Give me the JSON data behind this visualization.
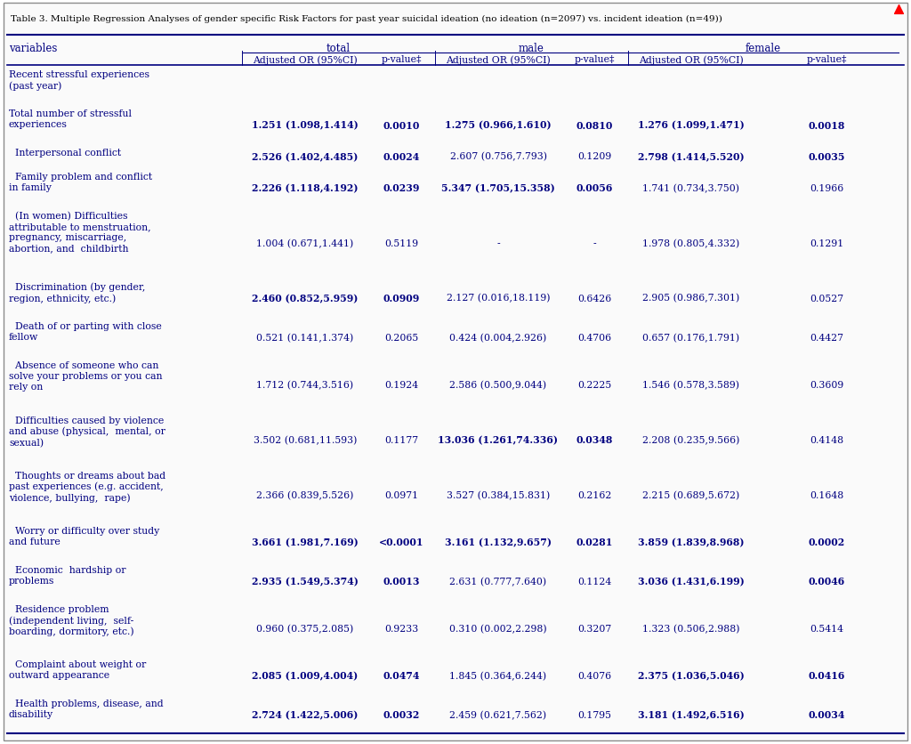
{
  "title": "Table 3. Multiple Regression Analyses of gender specific Risk Factors for past year suicidal ideation (no ideation (n=2097) vs. incident ideation (n=49))",
  "rows": [
    {
      "variable": "Recent stressful experiences\n(past year)",
      "total_or": "",
      "total_p": "",
      "male_or": "",
      "male_p": "",
      "female_or": "",
      "female_p": "",
      "bold_total": false,
      "bold_total_p": false,
      "bold_male": false,
      "bold_male_p": false,
      "bold_female": false,
      "bold_female_p": false,
      "n_lines": 2
    },
    {
      "variable": "Total number of stressful\nexperiences",
      "total_or": "1.251 (1.098,1.414)",
      "total_p": "0.0010",
      "male_or": "1.275 (0.966,1.610)",
      "male_p": "0.0810",
      "female_or": "1.276 (1.099,1.471)",
      "female_p": "0.0018",
      "bold_total": true,
      "bold_total_p": true,
      "bold_male": true,
      "bold_male_p": true,
      "bold_female": true,
      "bold_female_p": true,
      "n_lines": 2
    },
    {
      "variable": "  Interpersonal conflict",
      "total_or": "2.526 (1.402,4.485)",
      "total_p": "0.0024",
      "male_or": "2.607 (0.756,7.793)",
      "male_p": "0.1209",
      "female_or": "2.798 (1.414,5.520)",
      "female_p": "0.0035",
      "bold_total": true,
      "bold_total_p": true,
      "bold_male": false,
      "bold_male_p": false,
      "bold_female": true,
      "bold_female_p": true,
      "n_lines": 1
    },
    {
      "variable": "  Family problem and conflict\nin family",
      "total_or": "2.226 (1.118,4.192)",
      "total_p": "0.0239",
      "male_or": "5.347 (1.705,15.358)",
      "male_p": "0.0056",
      "female_or": "1.741 (0.734,3.750)",
      "female_p": "0.1966",
      "bold_total": true,
      "bold_total_p": true,
      "bold_male": true,
      "bold_male_p": true,
      "bold_female": false,
      "bold_female_p": false,
      "n_lines": 2
    },
    {
      "variable": "  (In women) Difficulties\nattributable to menstruation,\npregnancy, miscarriage,\nabortion, and  childbirth",
      "total_or": "1.004 (0.671,1.441)",
      "total_p": "0.5119",
      "male_or": "-",
      "male_p": "-",
      "female_or": "1.978 (0.805,4.332)",
      "female_p": "0.1291",
      "bold_total": false,
      "bold_total_p": false,
      "bold_male": false,
      "bold_male_p": false,
      "bold_female": false,
      "bold_female_p": false,
      "n_lines": 4
    },
    {
      "variable": "  Discrimination (by gender,\nregion, ethnicity, etc.)",
      "total_or": "2.460 (0.852,5.959)",
      "total_p": "0.0909",
      "male_or": "2.127 (0.016,18.119)",
      "male_p": "0.6426",
      "female_or": "2.905 (0.986,7.301)",
      "female_p": "0.0527",
      "bold_total": true,
      "bold_total_p": true,
      "bold_male": false,
      "bold_male_p": false,
      "bold_female": false,
      "bold_female_p": false,
      "n_lines": 2
    },
    {
      "variable": "  Death of or parting with close\nfellow",
      "total_or": "0.521 (0.141,1.374)",
      "total_p": "0.2065",
      "male_or": "0.424 (0.004,2.926)",
      "male_p": "0.4706",
      "female_or": "0.657 (0.176,1.791)",
      "female_p": "0.4427",
      "bold_total": false,
      "bold_total_p": false,
      "bold_male": false,
      "bold_male_p": false,
      "bold_female": false,
      "bold_female_p": false,
      "n_lines": 2
    },
    {
      "variable": "  Absence of someone who can\nsolve your problems or you can\nrely on",
      "total_or": "1.712 (0.744,3.516)",
      "total_p": "0.1924",
      "male_or": "2.586 (0.500,9.044)",
      "male_p": "0.2225",
      "female_or": "1.546 (0.578,3.589)",
      "female_p": "0.3609",
      "bold_total": false,
      "bold_total_p": false,
      "bold_male": false,
      "bold_male_p": false,
      "bold_female": false,
      "bold_female_p": false,
      "n_lines": 3
    },
    {
      "variable": "  Difficulties caused by violence\nand abuse (physical,  mental, or\nsexual)",
      "total_or": "3.502 (0.681,11.593)",
      "total_p": "0.1177",
      "male_or": "13.036 (1.261,74.336)",
      "male_p": "0.0348",
      "female_or": "2.208 (0.235,9.566)",
      "female_p": "0.4148",
      "bold_total": false,
      "bold_total_p": false,
      "bold_male": true,
      "bold_male_p": true,
      "bold_female": false,
      "bold_female_p": false,
      "n_lines": 3
    },
    {
      "variable": "  Thoughts or dreams about bad\npast experiences (e.g. accident,\nviolence, bullying,  rape)",
      "total_or": "2.366 (0.839,5.526)",
      "total_p": "0.0971",
      "male_or": "3.527 (0.384,15.831)",
      "male_p": "0.2162",
      "female_or": "2.215 (0.689,5.672)",
      "female_p": "0.1648",
      "bold_total": false,
      "bold_total_p": false,
      "bold_male": false,
      "bold_male_p": false,
      "bold_female": false,
      "bold_female_p": false,
      "n_lines": 3
    },
    {
      "variable": "  Worry or difficulty over study\nand future",
      "total_or": "3.661 (1.981,7.169)",
      "total_p": "<0.0001",
      "male_or": "3.161 (1.132,9.657)",
      "male_p": "0.0281",
      "female_or": "3.859 (1.839,8.968)",
      "female_p": "0.0002",
      "bold_total": true,
      "bold_total_p": true,
      "bold_male": true,
      "bold_male_p": true,
      "bold_female": true,
      "bold_female_p": true,
      "n_lines": 2
    },
    {
      "variable": "  Economic  hardship or\nproblems",
      "total_or": "2.935 (1.549,5.374)",
      "total_p": "0.0013",
      "male_or": "2.631 (0.777,7.640)",
      "male_p": "0.1124",
      "female_or": "3.036 (1.431,6.199)",
      "female_p": "0.0046",
      "bold_total": true,
      "bold_total_p": true,
      "bold_male": false,
      "bold_male_p": false,
      "bold_female": true,
      "bold_female_p": true,
      "n_lines": 2
    },
    {
      "variable": "  Residence problem\n(independent living,  self-\nboarding, dormitory, etc.)",
      "total_or": "0.960 (0.375,2.085)",
      "total_p": "0.9233",
      "male_or": "0.310 (0.002,2.298)",
      "male_p": "0.3207",
      "female_or": "1.323 (0.506,2.988)",
      "female_p": "0.5414",
      "bold_total": false,
      "bold_total_p": false,
      "bold_male": false,
      "bold_male_p": false,
      "bold_female": false,
      "bold_female_p": false,
      "n_lines": 3
    },
    {
      "variable": "  Complaint about weight or\noutward appearance",
      "total_or": "2.085 (1.009,4.004)",
      "total_p": "0.0474",
      "male_or": "1.845 (0.364,6.244)",
      "male_p": "0.4076",
      "female_or": "2.375 (1.036,5.046)",
      "female_p": "0.0416",
      "bold_total": true,
      "bold_total_p": true,
      "bold_male": false,
      "bold_male_p": false,
      "bold_female": true,
      "bold_female_p": true,
      "n_lines": 2
    },
    {
      "variable": "  Health problems, disease, and\ndisability",
      "total_or": "2.724 (1.422,5.006)",
      "total_p": "0.0032",
      "male_or": "2.459 (0.621,7.562)",
      "male_p": "0.1795",
      "female_or": "3.181 (1.492,6.516)",
      "female_p": "0.0034",
      "bold_total": true,
      "bold_total_p": true,
      "bold_male": false,
      "bold_male_p": false,
      "bold_female": true,
      "bold_female_p": true,
      "n_lines": 2
    }
  ],
  "bg_color": "#FFFFFF",
  "text_color": "#000080",
  "border_color": "#000080",
  "title_color": "#000000",
  "outer_border_color": "#8B8B8B"
}
